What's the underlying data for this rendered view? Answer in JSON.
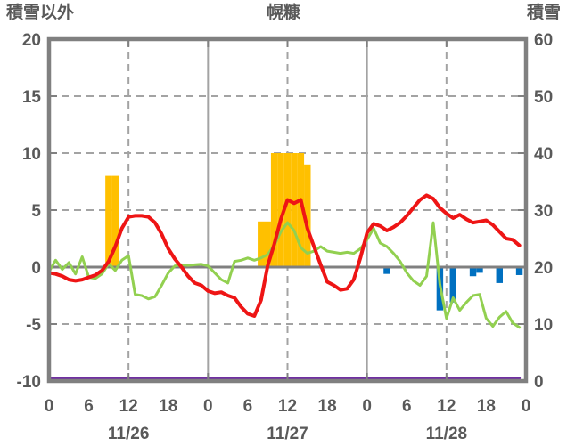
{
  "header": {
    "left_axis_title": "積雪以外",
    "station_title": "幌糠",
    "right_axis_title": "積雪"
  },
  "colors": {
    "border": "#808080",
    "zero_line": "#808080",
    "grid": "#a3a3a3",
    "text": "#595959",
    "red": "#ee1515",
    "green": "#92d050",
    "orange": "#ffc000",
    "blue": "#0070c0",
    "purple": "#7030a0",
    "background": "#ffffff"
  },
  "chart_data": {
    "type": "line+bar combo, hourly, 3 days",
    "hours_total": 72,
    "left_axis": {
      "title": "積雪以外",
      "min": -10,
      "max": 20,
      "ticks": [
        20,
        15,
        10,
        5,
        0,
        -5,
        -10
      ]
    },
    "right_axis": {
      "title": "積雪",
      "min": 0,
      "max": 60,
      "ticks": [
        60,
        50,
        40,
        30,
        20,
        10,
        0
      ]
    },
    "x_axis": {
      "hour_tick_positions": [
        0,
        6,
        12,
        18,
        24,
        30,
        36,
        42,
        48,
        54,
        60,
        66,
        72
      ],
      "hour_tick_labels": [
        "0",
        "6",
        "12",
        "18",
        "0",
        "6",
        "12",
        "18",
        "0",
        "6",
        "12",
        "18",
        "0"
      ],
      "day_labels": [
        "11/26",
        "11/27",
        "11/28"
      ],
      "day_label_center_hours": [
        12,
        36,
        60
      ],
      "dashed_gridline_hours": [
        12,
        36,
        60
      ],
      "solid_gridline_hours": [
        24,
        48
      ],
      "border_tick_hours": [
        12,
        24,
        36,
        48,
        60
      ],
      "side_tick_values": [
        15,
        10,
        5,
        -5
      ]
    },
    "series": [
      {
        "name": "red-line",
        "type": "line",
        "axis": "left",
        "color_key": "red",
        "width": 4,
        "values": [
          -0.5,
          -0.6,
          -0.8,
          -1.1,
          -1.2,
          -1.1,
          -0.9,
          -0.7,
          -0.3,
          0.5,
          1.8,
          3.4,
          4.4,
          4.5,
          4.5,
          4.4,
          3.9,
          2.9,
          1.6,
          0.7,
          0.0,
          -0.8,
          -1.4,
          -1.6,
          -2.1,
          -2.3,
          -2.2,
          -2.5,
          -2.7,
          -3.5,
          -4.1,
          -4.3,
          -2.9,
          0.1,
          2.0,
          4.2,
          5.9,
          5.6,
          5.9,
          3.4,
          1.8,
          0.2,
          -1.3,
          -1.6,
          -2.0,
          -1.9,
          -1.1,
          0.8,
          3.0,
          3.8,
          3.6,
          3.2,
          3.5,
          3.9,
          4.5,
          5.2,
          5.9,
          6.3,
          6.0,
          5.2,
          4.7,
          4.3,
          4.6,
          4.2,
          3.9,
          4.0,
          4.1,
          3.7,
          3.1,
          2.5,
          2.4,
          1.9
        ]
      },
      {
        "name": "green-line",
        "type": "line",
        "axis": "left",
        "color_key": "green",
        "width": 3,
        "values": [
          -0.4,
          0.6,
          -0.2,
          0.4,
          -0.6,
          0.9,
          -0.9,
          -1.0,
          -0.6,
          0.3,
          -0.3,
          0.6,
          1.0,
          -2.4,
          -2.5,
          -2.8,
          -2.6,
          -1.6,
          -0.5,
          0.1,
          0.2,
          0.15,
          0.2,
          0.25,
          0.1,
          -0.5,
          -1.1,
          -1.4,
          0.5,
          0.6,
          0.8,
          0.6,
          0.8,
          1.1,
          1.9,
          3.1,
          3.9,
          3.2,
          1.7,
          1.2,
          1.4,
          1.8,
          1.4,
          1.3,
          1.2,
          1.3,
          1.2,
          1.6,
          2.4,
          3.4,
          2.1,
          1.8,
          1.2,
          0.5,
          -0.5,
          -1.2,
          -1.6,
          -0.8,
          3.9,
          -1.5,
          -4.5,
          -2.7,
          -3.8,
          -3.1,
          -2.5,
          -2.4,
          -4.5,
          -5.2,
          -4.4,
          -3.9,
          -4.9,
          -5.3
        ]
      },
      {
        "name": "orange-bars",
        "type": "bar",
        "axis": "left",
        "color_key": "orange",
        "values_by_hour": {
          "9": 8,
          "10": 8,
          "32": 4,
          "33": 4,
          "34": 10,
          "35": 10,
          "36": 10,
          "37": 10,
          "38": 10,
          "39": 9
        }
      },
      {
        "name": "blue-bars",
        "type": "bar",
        "axis": "left",
        "color_key": "blue",
        "values_by_hour": {
          "51": -0.6,
          "59": -3.8,
          "61": -3.1,
          "64": -0.8,
          "65": -0.5,
          "68": -1.4,
          "71": -0.7
        }
      },
      {
        "name": "purple-line",
        "type": "line",
        "axis": "right",
        "color_key": "purple",
        "width": 3,
        "constant_value": 0.5
      }
    ]
  }
}
